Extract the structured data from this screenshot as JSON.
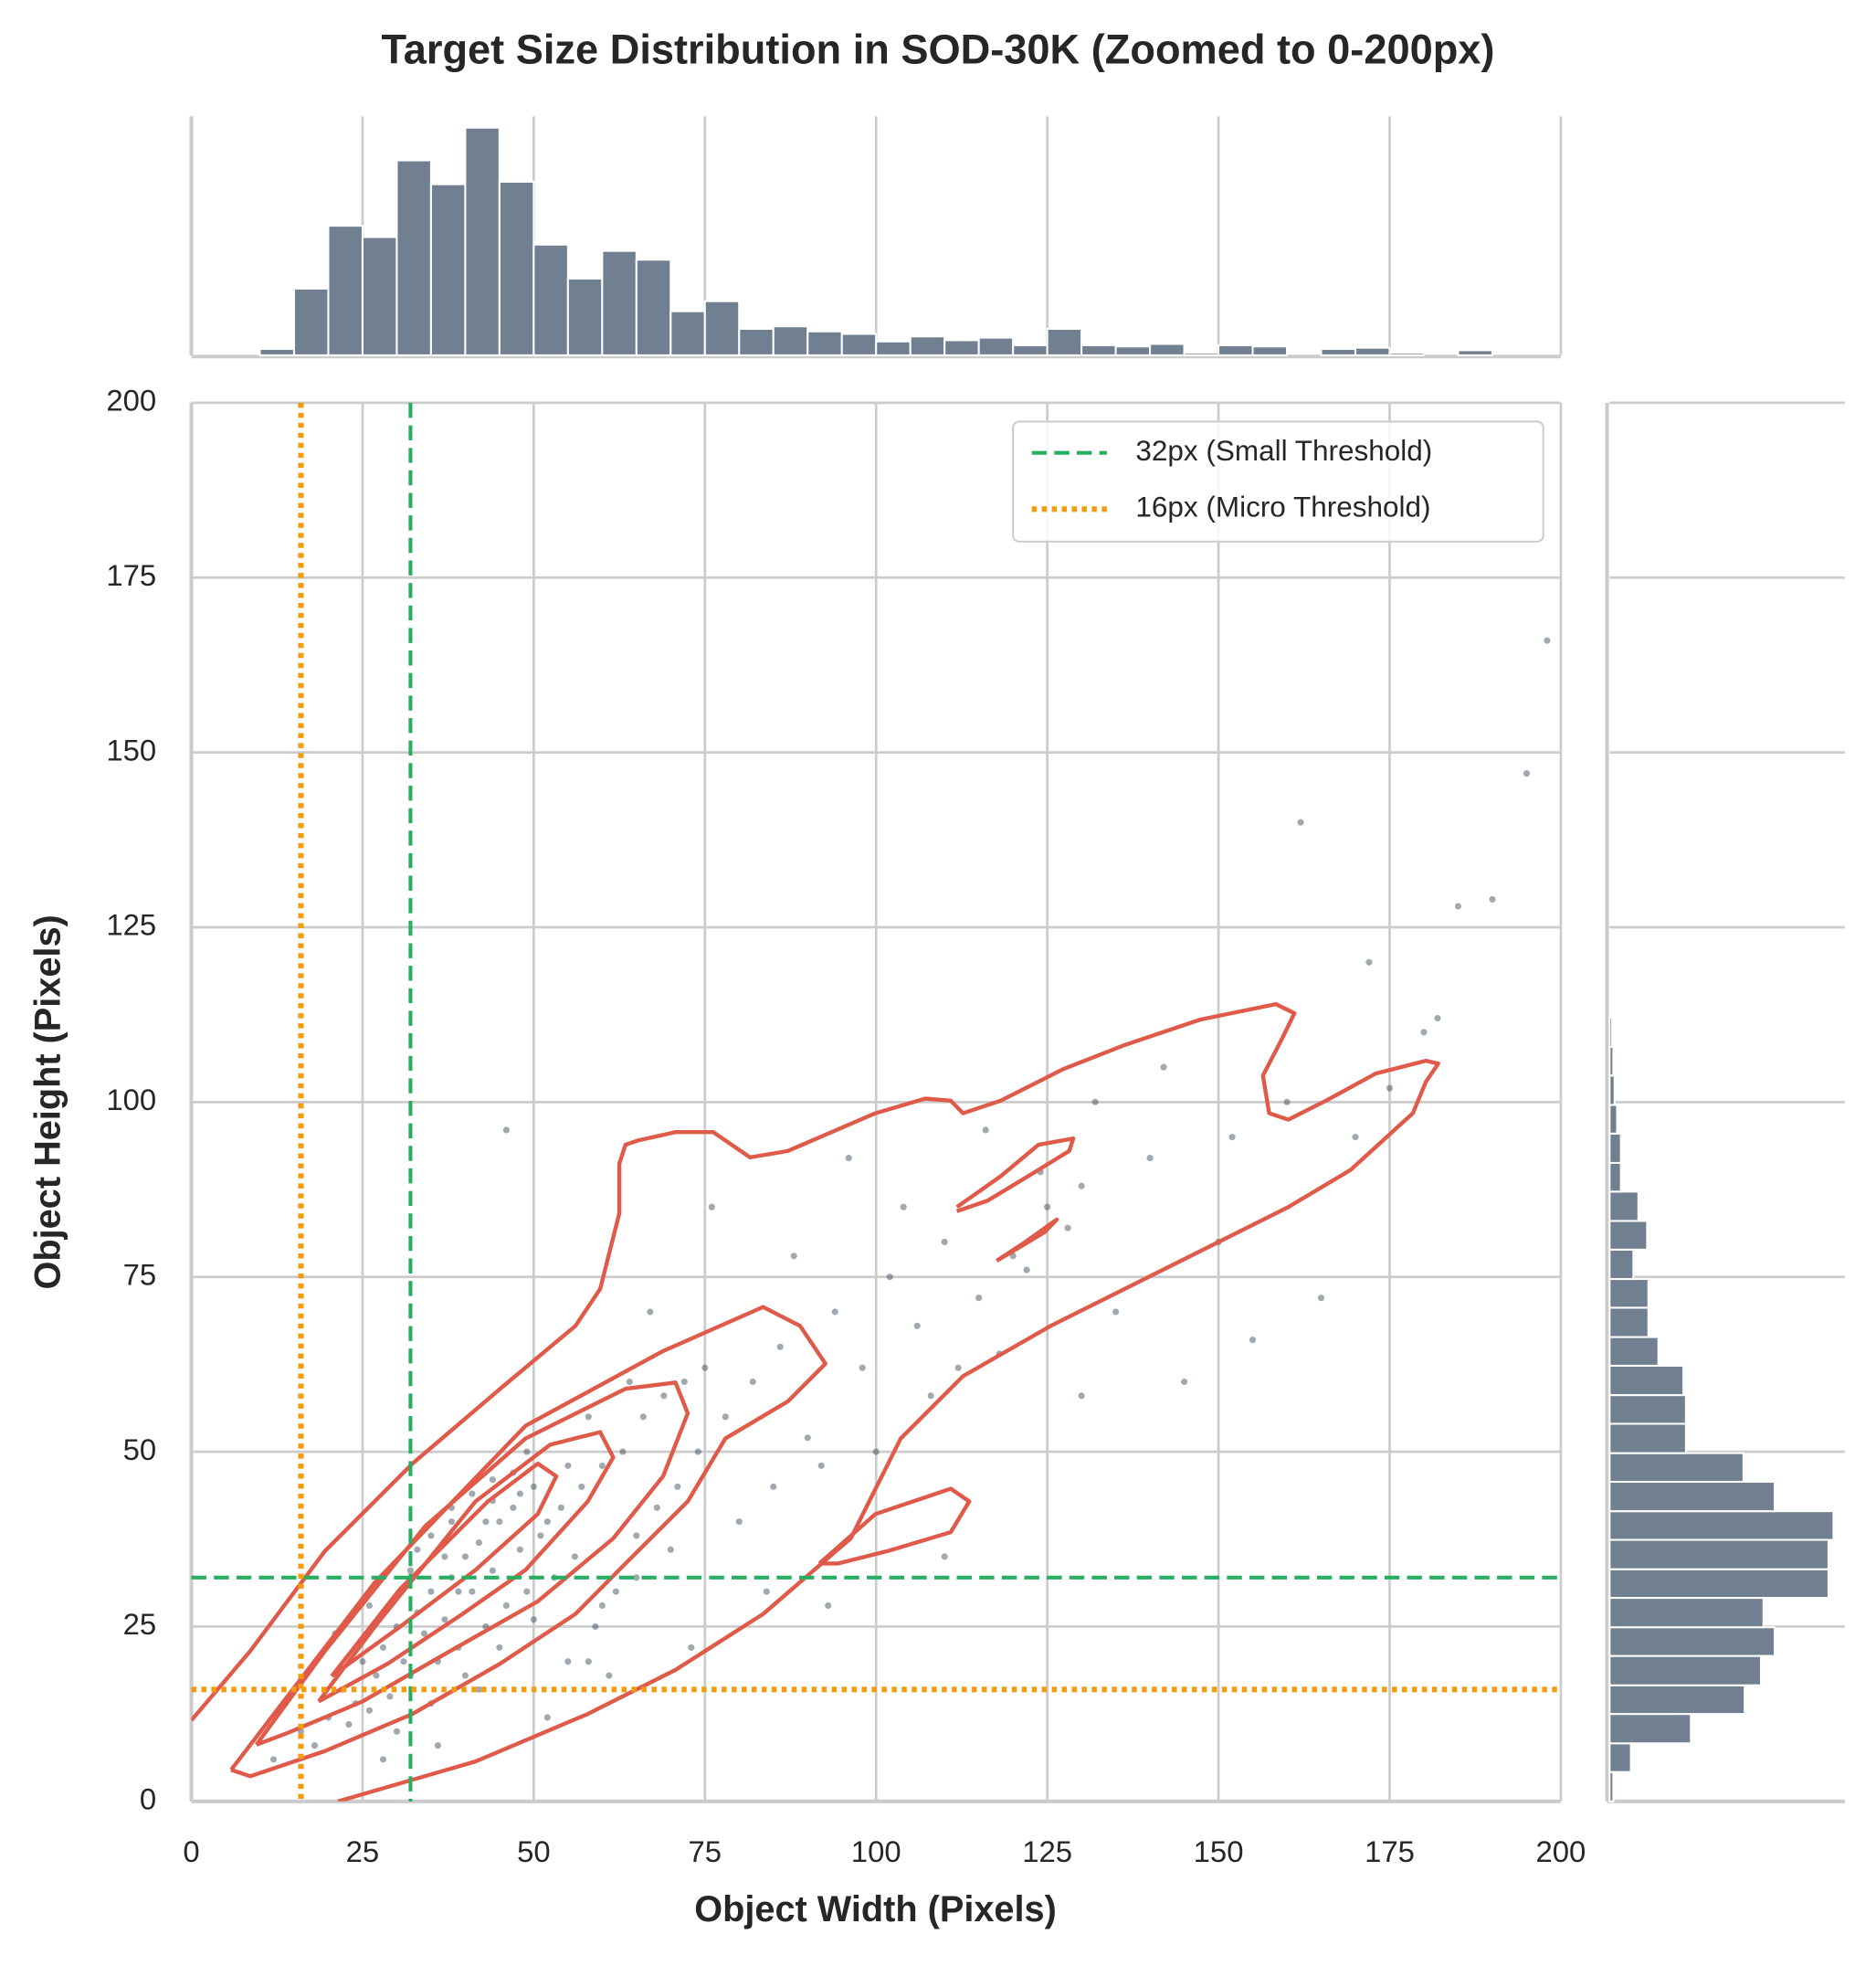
{
  "chart_data": [
    {
      "type": "scatter",
      "title": "Target Size Distribution in SOD-30K (Zoomed to 0-200px)",
      "x_label": "Object Width (Pixels)",
      "y_label": "Object Height (Pixels)",
      "xlim": [
        0,
        200
      ],
      "ylim": [
        0,
        200
      ],
      "xticks": [
        0,
        25,
        50,
        75,
        100,
        125,
        150,
        175,
        200
      ],
      "yticks": [
        0,
        25,
        50,
        75,
        100,
        125,
        150,
        175,
        200
      ],
      "grid": true,
      "legend": "upper right",
      "color": "#2c3e50",
      "x": [
        22,
        25,
        28,
        30,
        33,
        35,
        38,
        40,
        42,
        45,
        47,
        50,
        52,
        55,
        20,
        24,
        27,
        31,
        34,
        37,
        41,
        44,
        48,
        51,
        54,
        57,
        60,
        63,
        66,
        69,
        72,
        75,
        18,
        23,
        26,
        29,
        32,
        36,
        39,
        43,
        46,
        49,
        53,
        56,
        59,
        62,
        65,
        68,
        71,
        74,
        78,
        82,
        86,
        90,
        94,
        98,
        102,
        106,
        110,
        115,
        120,
        125,
        130,
        135,
        140,
        150,
        160,
        170,
        180,
        190,
        30,
        35,
        40,
        45,
        50,
        55,
        60,
        65,
        70,
        21,
        26,
        33,
        38,
        44,
        49,
        58,
        64,
        80,
        85,
        92,
        100,
        108,
        112,
        118,
        122,
        128,
        145,
        155,
        165,
        175,
        185,
        195,
        88,
        96,
        104,
        116,
        124,
        132,
        142,
        152,
        162,
        172,
        182,
        198,
        76,
        84,
        93,
        67,
        73,
        46,
        52,
        61,
        36,
        42,
        28,
        16,
        12,
        58,
        110,
        130,
        35,
        38,
        41,
        44,
        47,
        32,
        37,
        43,
        48,
        39
      ],
      "y": [
        16,
        20,
        22,
        25,
        27,
        30,
        32,
        35,
        37,
        40,
        42,
        45,
        40,
        48,
        12,
        14,
        18,
        20,
        24,
        26,
        30,
        33,
        36,
        38,
        42,
        45,
        48,
        50,
        55,
        58,
        60,
        62,
        8,
        11,
        13,
        15,
        18,
        20,
        22,
        25,
        28,
        30,
        32,
        35,
        25,
        30,
        38,
        42,
        45,
        50,
        55,
        60,
        65,
        52,
        70,
        62,
        75,
        68,
        80,
        72,
        78,
        85,
        88,
        70,
        92,
        80,
        100,
        95,
        110,
        129,
        10,
        14,
        18,
        22,
        26,
        20,
        28,
        32,
        36,
        24,
        28,
        36,
        42,
        46,
        50,
        55,
        60,
        40,
        45,
        48,
        50,
        58,
        62,
        64,
        76,
        82,
        60,
        66,
        72,
        102,
        128,
        147,
        78,
        92,
        85,
        96,
        90,
        100,
        105,
        95,
        140,
        120,
        112,
        166,
        85,
        30,
        28,
        70,
        22,
        96,
        12,
        18,
        8,
        16,
        6,
        10,
        6,
        20,
        35,
        58,
        38,
        40,
        44,
        43,
        47,
        33,
        35,
        40,
        44,
        30
      ],
      "contour_color": "#e05a4a",
      "contours": [
        {
          "x": [
            0,
            8.6,
            19.5,
            32.3,
            45.1,
            56.1,
            59.7,
            62.5,
            62.5,
            63.4,
            65.2,
            70.7,
            76.2,
            78.9,
            81.6,
            87.1,
            99.9,
            107.2,
            110.9,
            112.7,
            118.2,
            127.3,
            136.4,
            147.4,
            158.4,
            161.1,
            159.3,
            156.5,
            157.4,
            160.2,
            165.7,
            173,
            180.3,
            182.1,
            180.3,
            178.4,
            169.3,
            160.2,
            143.7,
            125.5,
            112.7,
            103.6,
            96.3,
            83.5,
            70.7,
            57.9,
            45.1,
            41.5,
            21.4
          ],
          "y": [
            11.6,
            21.5,
            35.8,
            48.3,
            59,
            68,
            73.3,
            84.1,
            91.2,
            93.9,
            94.5,
            95.7,
            95.7,
            93.9,
            92.1,
            93,
            98.4,
            100.5,
            100.2,
            98.4,
            100.2,
            104.7,
            108.2,
            111.8,
            114,
            112.7,
            109.1,
            103.8,
            98.4,
            97.5,
            100.2,
            104.1,
            105.9,
            105.5,
            102.9,
            98.4,
            90.3,
            85,
            76.9,
            68,
            60.8,
            51.9,
            37.6,
            26.8,
            18.8,
            12.5,
            7.2,
            5.7,
            0
          ]
        },
        {
          "x": [
            5.8,
            26.8,
            48.8,
            68.9,
            83.5,
            88.9,
            92.6,
            87.1,
            78,
            72.5,
            63.4,
            56.1,
            45.1,
            32.3,
            19.5,
            8.6,
            5.8
          ],
          "y": [
            4.5,
            31.3,
            53.7,
            64.4,
            70.7,
            68,
            62.6,
            57.2,
            51.9,
            42.9,
            34,
            26.8,
            19.7,
            12.5,
            7.2,
            3.6,
            4.5
          ]
        },
        {
          "x": [
            9.5,
            19.5,
            34.2,
            48.8,
            63.4,
            70.7,
            72.5,
            68.9,
            61.6,
            50.6,
            37.8,
            25,
            14.1,
            9.5
          ],
          "y": [
            8.1,
            21.5,
            39.4,
            51.9,
            59,
            59.9,
            55.5,
            46.5,
            37.6,
            28.6,
            21.5,
            14.3,
            9.8,
            8.1
          ]
        },
        {
          "x": [
            18.6,
            26.8,
            41.5,
            52.4,
            59.7,
            61.6,
            57.9,
            48.8,
            39.6,
            28.7,
            18.6
          ],
          "y": [
            14.3,
            25,
            42.9,
            51,
            52.8,
            49.2,
            42.9,
            33.1,
            26.8,
            19.7,
            14.3
          ]
        },
        {
          "x": [
            20.5,
            30.5,
            43.3,
            50.6,
            53.3,
            50.6,
            41.5,
            30.5,
            20.5
          ],
          "y": [
            17.9,
            30.4,
            42.9,
            48.3,
            46.5,
            41.1,
            33.1,
            25,
            17.9
          ]
        },
        {
          "x": [
            91.7,
            99.9,
            110.9,
            113.6,
            110.9,
            101.7,
            94.4,
            91.7
          ],
          "y": [
            34,
            41.1,
            44.7,
            42.9,
            38.5,
            35.8,
            34,
            34
          ]
        },
        {
          "x": [
            111.8,
            118.2,
            123.7,
            128.8,
            128.2,
            123.7,
            116.3,
            111.8
          ],
          "y": [
            85,
            89.4,
            93.9,
            94.8,
            93,
            90.3,
            85.9,
            84.4
          ]
        },
        {
          "x": [
            117.6,
            121.8,
            125.5,
            126.4,
            124.6,
            120,
            117.6
          ],
          "y": [
            77.3,
            80,
            82.6,
            83.2,
            81.4,
            78.7,
            77.3
          ]
        }
      ],
      "reference_lines": [
        {
          "name": "32px (Small Threshold)",
          "value": 32,
          "color": "#27ae60",
          "style": "dashed"
        },
        {
          "name": "16px (Micro Threshold)",
          "value": 16,
          "color": "#f39c12",
          "style": "dotted"
        }
      ]
    },
    {
      "type": "histogram",
      "orientation": "vertical",
      "color": "#708090",
      "bins": [
        10,
        15,
        20,
        25,
        30,
        35,
        40,
        45,
        50,
        55,
        60,
        65,
        70,
        75,
        80,
        85,
        90,
        95,
        100,
        105,
        110,
        115,
        120,
        125,
        130,
        135,
        140,
        145,
        150,
        155,
        160,
        165,
        170,
        175,
        180,
        185,
        190
      ],
      "counts": [
        5,
        53,
        103,
        94,
        155,
        136,
        181,
        138,
        88,
        61,
        83,
        76,
        35,
        43,
        21,
        23,
        19,
        17,
        11,
        15,
        12,
        14,
        8,
        21,
        8,
        7,
        9,
        2,
        8,
        7,
        0,
        5,
        6,
        2,
        0,
        4
      ],
      "ylim": [
        0,
        190
      ]
    },
    {
      "type": "histogram",
      "orientation": "horizontal",
      "color": "#708090",
      "bins": [
        0,
        4.2,
        8.3,
        12.5,
        16.6,
        20.8,
        24.9,
        29.1,
        33.2,
        37.4,
        41.5,
        45.7,
        49.8,
        54,
        58.1,
        62.3,
        66.4,
        70.6,
        74.7,
        78.9,
        83,
        87.2,
        91.3,
        95.5,
        99.6,
        103.8,
        107.9,
        112.1
      ],
      "counts": [
        3,
        17,
        65,
        108,
        121,
        132,
        123,
        175,
        175,
        179,
        132,
        107,
        61,
        61,
        59,
        39,
        31,
        31,
        19,
        30,
        23,
        9,
        9,
        6,
        4,
        3,
        2
      ],
      "xlim": [
        0,
        188
      ]
    }
  ]
}
